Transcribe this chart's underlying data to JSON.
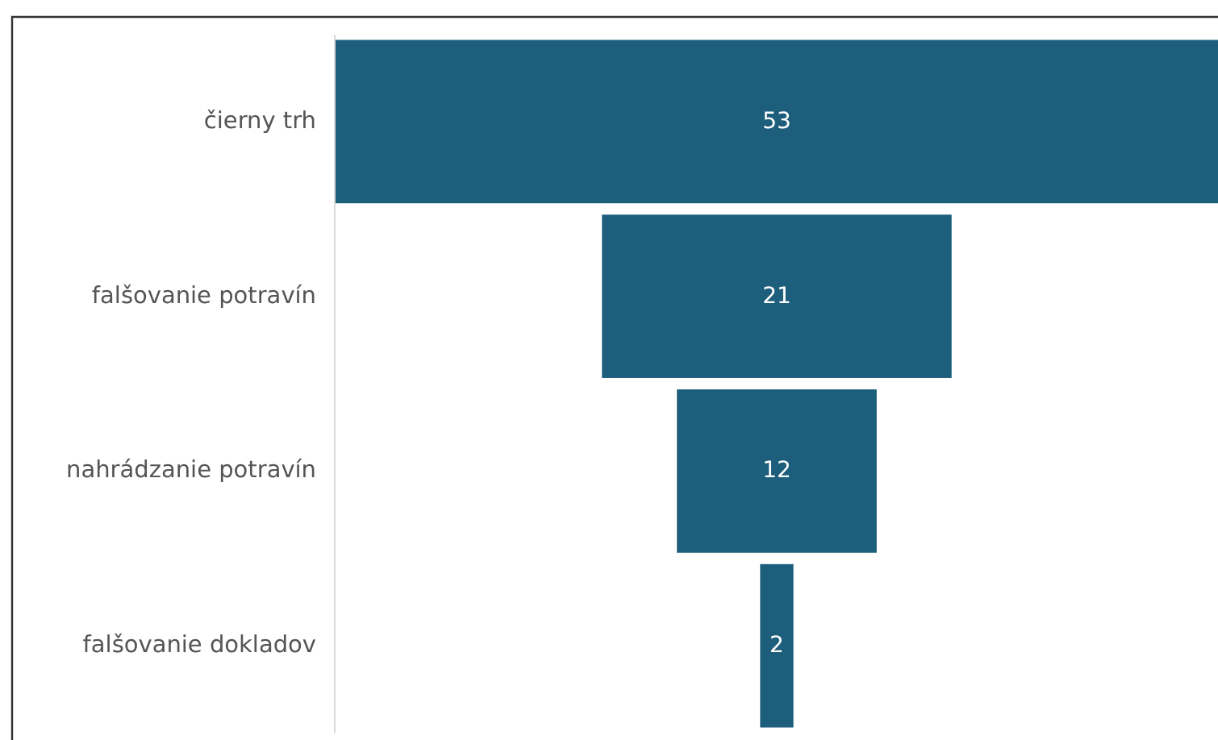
{
  "chart_data": {
    "type": "other",
    "categories": [
      "čierny trh",
      "falšovanie potravín",
      "nahrádzanie potravín",
      "falšovanie dokladov"
    ],
    "values": [
      53,
      21,
      12,
      2
    ],
    "color": "#1c5e7b",
    "data_labels": true
  }
}
